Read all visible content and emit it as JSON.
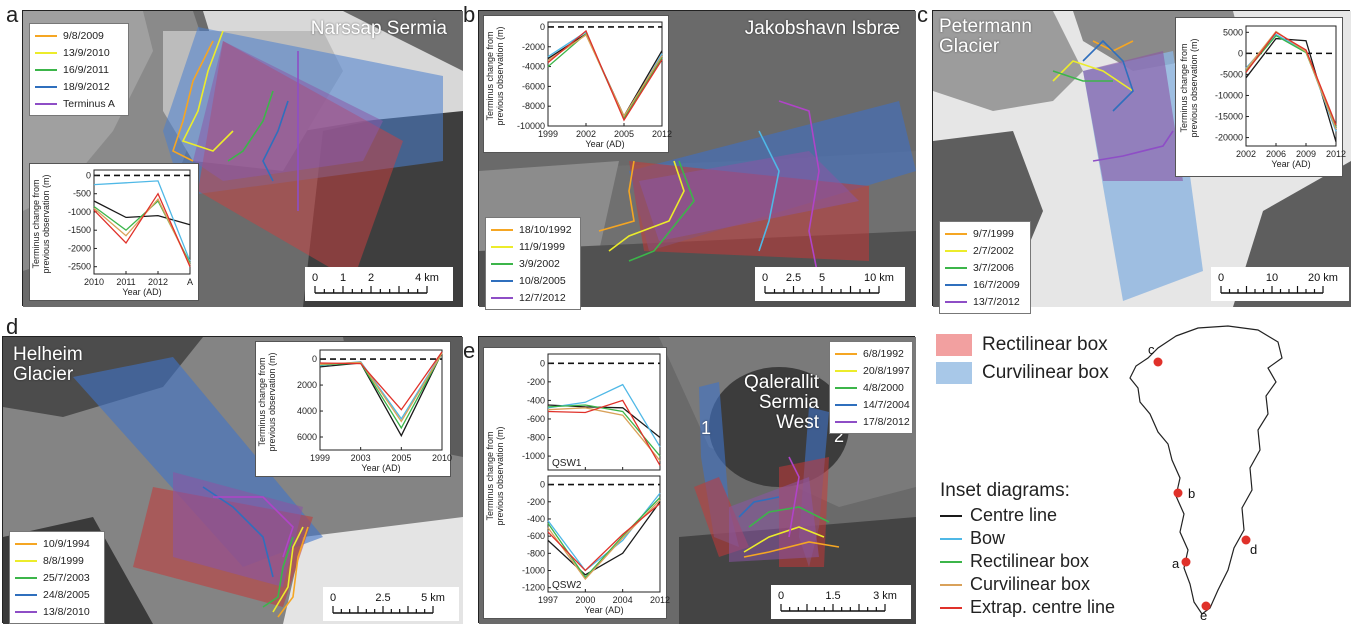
{
  "colors": {
    "orange": "#f5a623",
    "yellow": "#ecec2b",
    "green": "#3cb54a",
    "blue": "#2f6fbd",
    "purple": "#8e4ec6",
    "red": "#e0312a",
    "black": "#1a1a1a",
    "bow": "#4fb8e6",
    "curvilinear": "#d9a15a",
    "rect_box_fill": "#f2a0a0",
    "curv_box_fill": "#a8c8e8"
  },
  "panels": [
    {
      "letter": "a",
      "name_lines": [
        "Narssap Sermia"
      ],
      "legend": [
        {
          "label": "9/8/2009",
          "color": "orange"
        },
        {
          "label": "13/9/2010",
          "color": "yellow"
        },
        {
          "label": "16/9/2011",
          "color": "green"
        },
        {
          "label": "18/9/2012",
          "color": "blue"
        },
        {
          "label": "Terminus A",
          "color": "purple"
        }
      ],
      "scalebar": {
        "ticks": [
          "0",
          "1",
          "2",
          "4 km"
        ]
      },
      "chart_data": {
        "type": "line",
        "ylabel": "Terminus change from previous observation (m)",
        "xlabel": "Year (AD)",
        "categories": [
          "2010",
          "2011",
          "2012",
          "A"
        ],
        "yticks": [
          "0",
          "-500",
          "-1000",
          "-1500",
          "-2000",
          "-2500"
        ],
        "ylim": [
          -2700,
          150
        ],
        "zero_line": true,
        "series": [
          {
            "color": "black",
            "values": [
              -700,
              -1150,
              -1100,
              -1350
            ]
          },
          {
            "color": "bow",
            "values": [
              -250,
              -200,
              -150,
              -2350
            ]
          },
          {
            "color": "green",
            "values": [
              -850,
              -1500,
              -700,
              -2400
            ]
          },
          {
            "color": "curvilinear",
            "values": [
              -900,
              -1650,
              -650,
              -2450
            ]
          },
          {
            "color": "red",
            "values": [
              -950,
              -1850,
              -500,
              -2500
            ]
          }
        ]
      }
    },
    {
      "letter": "b",
      "name_lines": [
        "Jakobshavn Isbræ"
      ],
      "legend": [
        {
          "label": "18/10/1992",
          "color": "orange"
        },
        {
          "label": "11/9/1999",
          "color": "yellow"
        },
        {
          "label": "3/9/2002",
          "color": "green"
        },
        {
          "label": "10/8/2005",
          "color": "blue"
        },
        {
          "label": "12/7/2012",
          "color": "purple"
        }
      ],
      "scalebar": {
        "ticks": [
          "0",
          "2.5",
          "5",
          "10 km"
        ]
      },
      "chart_data": {
        "type": "line",
        "ylabel": "Terminus change from previous observation (m)",
        "xlabel": "Year (AD)",
        "categories": [
          "1999",
          "2002",
          "2005",
          "2012"
        ],
        "yticks": [
          "0",
          "-2000",
          "-4000",
          "-6000",
          "-8000",
          "-10000"
        ],
        "ylim": [
          -10000,
          500
        ],
        "zero_line": true,
        "series": [
          {
            "color": "black",
            "values": [
              -3200,
              -700,
              -9000,
              -2400
            ]
          },
          {
            "color": "bow",
            "values": [
              -3000,
              -500,
              -9300,
              -2700
            ]
          },
          {
            "color": "green",
            "values": [
              -4000,
              -700,
              -9200,
              -3100
            ]
          },
          {
            "color": "curvilinear",
            "values": [
              -3400,
              -800,
              -9000,
              -2900
            ]
          },
          {
            "color": "red",
            "values": [
              -3600,
              -400,
              -9400,
              -3300
            ]
          }
        ]
      }
    },
    {
      "letter": "c",
      "name_lines": [
        "Petermann",
        "Glacier"
      ],
      "legend": [
        {
          "label": "9/7/1999",
          "color": "orange"
        },
        {
          "label": "2/7/2002",
          "color": "yellow"
        },
        {
          "label": "3/7/2006",
          "color": "green"
        },
        {
          "label": "16/7/2009",
          "color": "blue"
        },
        {
          "label": "13/7/2012",
          "color": "purple"
        }
      ],
      "scalebar": {
        "ticks": [
          "0",
          "10",
          "20 km"
        ]
      },
      "chart_data": {
        "type": "line",
        "ylabel": "Terminus change from previous observation (m)",
        "xlabel": "Year (AD)",
        "categories": [
          "2002",
          "2006",
          "2009",
          "2012"
        ],
        "yticks": [
          "5000",
          "0",
          "-5000",
          "-10000",
          "-15000",
          "-20000"
        ],
        "ylim": [
          -22000,
          6500
        ],
        "zero_line": true,
        "series": [
          {
            "color": "black",
            "values": [
              -5800,
              3500,
              3000,
              -21000
            ]
          },
          {
            "color": "bow",
            "values": [
              -3500,
              4500,
              500,
              -18500
            ]
          },
          {
            "color": "green",
            "values": [
              -4200,
              4200,
              200,
              -17500
            ]
          },
          {
            "color": "curvilinear",
            "values": [
              -3800,
              5200,
              400,
              -18000
            ]
          },
          {
            "color": "red",
            "values": [
              -4500,
              5000,
              800,
              -17000
            ]
          }
        ]
      }
    },
    {
      "letter": "d",
      "name_lines": [
        "Helheim",
        "Glacier"
      ],
      "legend": [
        {
          "label": "10/9/1994",
          "color": "orange"
        },
        {
          "label": "8/8/1999",
          "color": "yellow"
        },
        {
          "label": "25/7/2003",
          "color": "green"
        },
        {
          "label": "24/8/2005",
          "color": "blue"
        },
        {
          "label": "13/8/2010",
          "color": "purple"
        }
      ],
      "scalebar": {
        "ticks": [
          "0",
          "2.5",
          "5 km"
        ]
      },
      "chart_data": {
        "type": "line",
        "ylabel": "Terminus change from previous observation (m)",
        "xlabel": "Year (AD)",
        "categories": [
          "1999",
          "2003",
          "2005",
          "2010"
        ],
        "yticks": [
          "0",
          "2000",
          "4000",
          "6000"
        ],
        "ylim": [
          7000,
          -700
        ],
        "zero_line": true,
        "series": [
          {
            "color": "black",
            "values": [
              600,
              300,
              5900,
              -500
            ]
          },
          {
            "color": "bow",
            "values": [
              500,
              200,
              4600,
              -500
            ]
          },
          {
            "color": "green",
            "values": [
              450,
              300,
              5300,
              -450
            ]
          },
          {
            "color": "curvilinear",
            "values": [
              400,
              250,
              4800,
              -450
            ]
          },
          {
            "color": "red",
            "values": [
              300,
              350,
              3900,
              -550
            ]
          }
        ]
      }
    },
    {
      "letter": "e",
      "name_lines": [
        "Qalerallit Sermia",
        "West"
      ],
      "label_1": "1",
      "label_2": "2",
      "legend": [
        {
          "label": "6/8/1992",
          "color": "orange"
        },
        {
          "label": "20/8/1997",
          "color": "yellow"
        },
        {
          "label": "4/8/2000",
          "color": "green"
        },
        {
          "label": "14/7/2004",
          "color": "blue"
        },
        {
          "label": "17/8/2012",
          "color": "purple"
        }
      ],
      "scalebar": {
        "ticks": [
          "0",
          "1.5",
          "3 km"
        ]
      },
      "chart_data": [
        {
          "type": "line",
          "name": "QSW1",
          "ylabel": "Terminus change from previous observation (m)",
          "categories": [
            "1997",
            "2000",
            "2004",
            "2012"
          ],
          "yticks": [
            "0",
            "-200",
            "-400",
            "-600",
            "-800",
            "-1000"
          ],
          "ylim": [
            -1150,
            100
          ],
          "zero_line": true,
          "series": [
            {
              "color": "black",
              "values": [
                -450,
                -470,
                -480,
                -800
              ]
            },
            {
              "color": "bow",
              "values": [
                -480,
                -420,
                -230,
                -900
              ]
            },
            {
              "color": "green",
              "values": [
                -470,
                -450,
                -520,
                -1000
              ]
            },
            {
              "color": "curvilinear",
              "values": [
                -500,
                -480,
                -560,
                -1050
              ]
            },
            {
              "color": "red",
              "values": [
                -520,
                -530,
                -400,
                -1100
              ]
            }
          ]
        },
        {
          "type": "line",
          "name": "QSW2",
          "xlabel": "Year (AD)",
          "categories": [
            "1997",
            "2000",
            "2004",
            "2012"
          ],
          "yticks": [
            "0",
            "-200",
            "-400",
            "-600",
            "-800",
            "-1000",
            "-1200"
          ],
          "ylim": [
            -1250,
            100
          ],
          "zero_line": true,
          "series": [
            {
              "color": "black",
              "values": [
                -650,
                -1050,
                -800,
                -200
              ]
            },
            {
              "color": "bow",
              "values": [
                -420,
                -1000,
                -650,
                -100
              ]
            },
            {
              "color": "green",
              "values": [
                -450,
                -1080,
                -600,
                -150
              ]
            },
            {
              "color": "curvilinear",
              "values": [
                -500,
                -1100,
                -620,
                -180
              ]
            },
            {
              "color": "red",
              "values": [
                -550,
                -1000,
                -580,
                -220
              ]
            }
          ]
        }
      ]
    }
  ],
  "box_key": [
    {
      "label": "Rectilinear box",
      "color": "rect_box_fill"
    },
    {
      "label": "Curvilinear box",
      "color": "curv_box_fill"
    }
  ],
  "inset_key": {
    "title": "Inset diagrams:",
    "items": [
      {
        "label": "Centre line",
        "color": "black"
      },
      {
        "label": "Bow",
        "color": "bow"
      },
      {
        "label": "Rectilinear box",
        "color": "green"
      },
      {
        "label": "Curvilinear box",
        "color": "curvilinear"
      },
      {
        "label": "Extrap. centre line",
        "color": "red"
      }
    ]
  },
  "greenland_map": {
    "sites": [
      {
        "label": "c"
      },
      {
        "label": "b"
      },
      {
        "label": "d"
      },
      {
        "label": "a"
      },
      {
        "label": "e"
      }
    ]
  }
}
